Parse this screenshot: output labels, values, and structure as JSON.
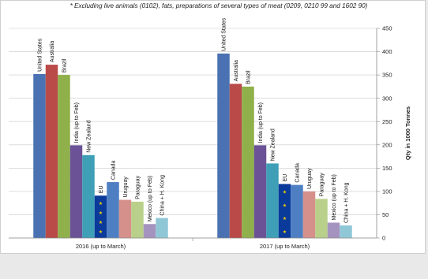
{
  "chart_data": {
    "type": "bar",
    "note": "* Excluding live animals (0102), fats, preparations of several types of meat (0209, 0210 99 and 1602 90)",
    "ylabel": "Qty in 1000 Tonnes",
    "ylim": [
      0,
      450
    ],
    "yticks": [
      0,
      50,
      100,
      150,
      200,
      250,
      300,
      350,
      400,
      450
    ],
    "grid": true,
    "categories": [
      "2016 (up to March)",
      "2017 (up to March)"
    ],
    "series": [
      {
        "name": "United States",
        "color": "#4a72b2",
        "values": [
          352,
          396
        ]
      },
      {
        "name": "Australia",
        "color": "#b94a48",
        "values": [
          372,
          331
        ]
      },
      {
        "name": "Brazil",
        "color": "#8fb04a",
        "values": [
          350,
          325
        ]
      },
      {
        "name": "India (up to Feb)",
        "color": "#6b5296",
        "values": [
          199,
          199
        ]
      },
      {
        "name": "New Zealand",
        "color": "#3e9fb6",
        "values": [
          178,
          160
        ]
      },
      {
        "name": "EU",
        "color": "#0a3a9a",
        "values": [
          91,
          116
        ]
      },
      {
        "name": "Canada",
        "color": "#4f7fc3",
        "values": [
          120,
          114
        ]
      },
      {
        "name": "Uruguay",
        "color": "#d6908c",
        "values": [
          82,
          100
        ]
      },
      {
        "name": "Paraguay",
        "color": "#b8d08a",
        "values": [
          78,
          84
        ]
      },
      {
        "name": "Mexico (up to Feb)",
        "color": "#a593bf",
        "values": [
          30,
          33
        ]
      },
      {
        "name": "China + H. Kong",
        "color": "#90c7d6",
        "values": [
          43,
          27
        ]
      }
    ]
  }
}
